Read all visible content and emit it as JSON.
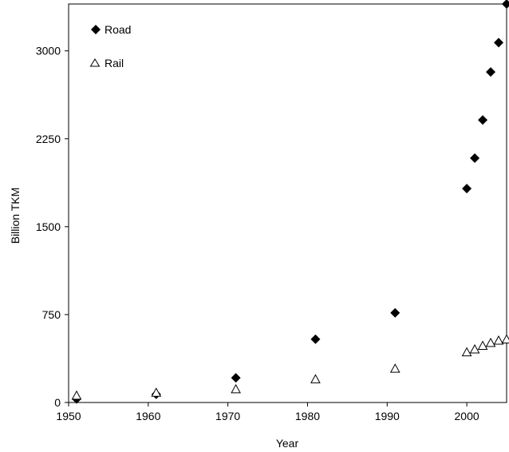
{
  "chart_data": {
    "type": "scatter",
    "xlabel": "Year",
    "ylabel": "Billion TKM",
    "xlim": [
      1950,
      2005
    ],
    "ylim": [
      0,
      3400
    ],
    "xticks": [
      1950,
      1960,
      1970,
      1980,
      1990,
      2000
    ],
    "yticks": [
      0,
      750,
      1500,
      2250,
      3000
    ],
    "grid": false,
    "legend_position": "top-left",
    "series": [
      {
        "name": "Road",
        "marker": "filled-diamond",
        "color": "#000000",
        "points": [
          {
            "x": 1951,
            "y": 30
          },
          {
            "x": 1961,
            "y": 70
          },
          {
            "x": 1971,
            "y": 210
          },
          {
            "x": 1981,
            "y": 540
          },
          {
            "x": 1991,
            "y": 765
          },
          {
            "x": 2000,
            "y": 1825
          },
          {
            "x": 2001,
            "y": 2085
          },
          {
            "x": 2002,
            "y": 2410
          },
          {
            "x": 2003,
            "y": 2820
          },
          {
            "x": 2004,
            "y": 3070
          },
          {
            "x": 2005,
            "y": 3400
          }
        ]
      },
      {
        "name": "Rail",
        "marker": "open-triangle",
        "color": "#000000",
        "points": [
          {
            "x": 1951,
            "y": 55
          },
          {
            "x": 1961,
            "y": 80
          },
          {
            "x": 1971,
            "y": 110
          },
          {
            "x": 1981,
            "y": 195
          },
          {
            "x": 1991,
            "y": 285
          },
          {
            "x": 2000,
            "y": 425
          },
          {
            "x": 2001,
            "y": 450
          },
          {
            "x": 2002,
            "y": 480
          },
          {
            "x": 2003,
            "y": 505
          },
          {
            "x": 2004,
            "y": 525
          },
          {
            "x": 2005,
            "y": 535
          }
        ]
      }
    ]
  }
}
